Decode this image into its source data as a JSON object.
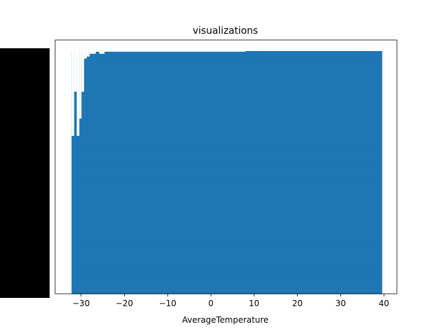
{
  "chart_data": {
    "type": "bar",
    "orientation": "horizontal",
    "title": "visualizations",
    "xlabel": "AverageTemperature",
    "ylabel": "",
    "xlim": [
      -36,
      43
    ],
    "xticks": [
      -30,
      -20,
      -10,
      0,
      10,
      20,
      30,
      40
    ],
    "xtick_labels": [
      "−30",
      "−20",
      "−10",
      "0",
      "10",
      "20",
      "30",
      "40"
    ],
    "ytick_labels_legible": false,
    "bar_color": "#1f77b4",
    "x_min_value": -32.2,
    "series": [
      {
        "values": [
          39.6,
          39.4,
          39.1,
          38.9,
          38.6,
          38.4,
          38.1,
          37.9,
          37.6,
          37.4,
          37.1,
          36.9,
          36.6,
          36.4,
          36.1,
          35.9,
          35.6,
          35.4,
          35.1,
          34.9,
          34.6,
          34.4,
          34.1,
          33.9,
          33.6,
          33.4,
          33.1,
          32.9,
          32.6,
          32.4,
          32.1,
          31.9,
          31.6,
          31.4,
          31.1,
          30.9,
          30.6,
          30.4,
          30.1,
          29.9,
          29.6,
          29.4,
          29.1,
          28.9,
          28.6,
          28.4,
          28.1,
          27.9,
          27.6,
          27.4,
          27.1,
          26.9,
          26.6,
          26.4,
          26.1,
          25.9,
          25.6,
          25.4,
          25.1,
          24.9,
          24.6,
          24.4,
          24.1,
          23.9,
          23.6,
          23.4,
          23.1,
          22.9,
          22.6,
          22.4,
          22.1,
          21.9,
          21.6,
          21.4,
          21.1,
          20.9,
          20.6,
          20.4,
          20.1,
          19.9,
          19.6,
          19.4,
          19.1,
          18.9,
          18.6,
          18.4,
          18.1,
          17.9,
          17.6,
          17.4,
          17.1,
          16.9,
          16.6,
          16.4,
          16.1,
          15.9,
          15.6,
          15.4,
          15.1,
          14.9,
          14.6,
          14.4,
          14.1,
          13.9,
          13.6,
          13.4,
          13.1,
          12.9,
          12.6,
          12.4,
          12.1,
          11.9,
          11.6,
          11.4,
          11.1,
          10.9,
          10.6,
          10.4,
          10.1,
          9.9,
          9.6,
          9.4,
          9.1,
          8.9,
          8.6,
          8.4,
          8.1,
          7.9,
          7.6,
          7.4,
          7.1,
          6.9,
          6.6,
          6.4,
          6.1,
          5.9,
          5.6,
          5.4,
          5.1,
          4.9,
          4.6,
          4.4,
          4.1,
          3.9,
          3.6,
          3.4,
          3.1,
          2.9,
          2.6,
          2.4,
          2.1,
          1.9,
          1.6,
          1.4,
          1.1,
          0.9,
          0.6,
          0.4,
          0.1,
          -0.1,
          -0.4,
          -0.6,
          -0.9,
          -1.1,
          -1.4,
          -1.6,
          -1.9,
          -2.1,
          -2.4,
          -2.6,
          -2.9,
          -3.1,
          -3.4,
          -3.6,
          -3.9,
          -4.1,
          -4.4,
          -4.6,
          -4.9,
          -5.1,
          -5.4,
          -5.6,
          -5.9,
          -6.1,
          -6.4,
          -6.6,
          -6.9,
          -7.1,
          -7.4,
          -7.6,
          -7.9,
          -8.1,
          -8.4,
          -8.6,
          -8.9,
          -9.1,
          -9.4,
          -9.6,
          -9.9,
          -10.1,
          -10.4,
          -10.6,
          -10.9,
          -11.1,
          -11.4,
          -11.6,
          -11.9,
          -12.1,
          -12.4,
          -12.6,
          -12.9,
          -13.1,
          -13.4,
          -13.6,
          -13.9,
          -14.1,
          -14.4,
          -14.6,
          -14.9,
          -15.1,
          -15.4,
          -15.6,
          -15.9,
          -16.1,
          -16.4,
          -16.6,
          -16.9,
          -17.1,
          -17.4,
          -17.6,
          -17.9,
          -18.1,
          -18.4,
          -18.6,
          -18.9,
          -19.1,
          -19.4,
          -19.6,
          -19.9,
          -20.1,
          -20.4,
          -20.6,
          -20.9,
          -21.1,
          -21.4,
          -21.6,
          -21.9,
          -22.1,
          -22.4,
          -22.6,
          -22.9,
          -23.1,
          -23.4,
          -23.6,
          -23.9,
          -24.1,
          -24.4,
          -24.6,
          -24.9,
          -25.1,
          -25.4,
          -25.6,
          -26.0,
          -26.5,
          -27.0,
          -27.5,
          -28.0,
          -28.5,
          -29.0,
          -29.5,
          -29.8,
          -30.0,
          -30.3,
          -30.6,
          -30.9,
          -31.2,
          -31.5,
          -31.8,
          -32.0,
          -32.2
        ]
      }
    ]
  },
  "top_profile": {
    "comment_free": true,
    "steps": [
      {
        "x": -32.2,
        "top": -15.5
      },
      {
        "x": -31.5,
        "top": -15.5
      },
      {
        "x": -31.5,
        "top": -16.5
      },
      {
        "x": -30.8,
        "top": -16.5
      },
      {
        "x": -30.8,
        "top": -15.5
      },
      {
        "x": -30.3,
        "top": -15.3
      },
      {
        "x": -29.9,
        "top": -16.9
      },
      {
        "x": -29.0,
        "top": -17.8
      },
      {
        "x": -28.0,
        "top": -18.0
      },
      {
        "x": -27.0,
        "top": -18.1
      },
      {
        "x": -26.5,
        "top": -18.3
      },
      {
        "x": -25.5,
        "top": -18.2
      },
      {
        "x": -24.5,
        "top": -18.3
      },
      {
        "x": 7.8,
        "top": -18.3
      },
      {
        "x": 8.0,
        "top": -18.4
      },
      {
        "x": 39.6,
        "top": -18.4
      }
    ]
  }
}
